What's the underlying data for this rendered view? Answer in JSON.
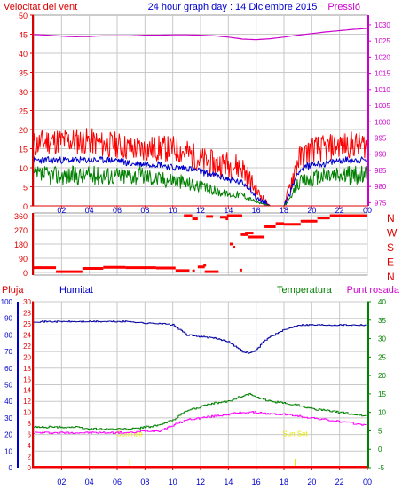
{
  "header": {
    "left_title": "Velocitat del vent",
    "center_title": "24 hour graph day : 14 Diciembre 2015",
    "right_title": "Pressió"
  },
  "lower_header": {
    "pluja": "Pluja",
    "humitat": "Humitat",
    "temperatura": "Temperatura",
    "punt_rosada": "Punt rosada"
  },
  "colors": {
    "gust": "#ff0000",
    "wind_avg": "#0000cc",
    "wind_low": "#008000",
    "pressure": "#cc00cc",
    "direction": "#ff0000",
    "humidity": "#0000a0",
    "temperature": "#008000",
    "dewpoint": "#ff00ff",
    "rain": "#ff0000",
    "sun": "#e8e800",
    "axis_red": "#dd0000",
    "axis_magenta": "#cc00cc",
    "axis_blue": "#0000cc",
    "axis_green": "#008000",
    "grid": "#c8c8c8"
  },
  "chart_data": [
    {
      "type": "line",
      "name": "wind",
      "x_ticks": [
        "02",
        "04",
        "06",
        "08",
        "10",
        "12",
        "14",
        "16",
        "18",
        "20",
        "22",
        "00"
      ],
      "y_left_ticks": [
        "0",
        "5",
        "10",
        "15",
        "20",
        "25",
        "30",
        "35",
        "40",
        "45",
        "50"
      ],
      "y_left_range": [
        0,
        50
      ],
      "y_right_ticks": [
        "975",
        "980",
        "985",
        "990",
        "995",
        "1000",
        "1005",
        "1010",
        "1015",
        "1020",
        "1025",
        "1030"
      ],
      "y_right_range": [
        974,
        1033
      ],
      "grid": true,
      "series": [
        {
          "role": "gust",
          "x": [
            0,
            1,
            2,
            3,
            4,
            5,
            6,
            7,
            8,
            9,
            10,
            11,
            12,
            13,
            14,
            15,
            15.5,
            16,
            17,
            18,
            18.5,
            19,
            20,
            21,
            22,
            23,
            24
          ],
          "y": [
            16,
            17,
            17,
            17,
            17,
            16,
            16,
            15,
            15,
            15,
            15,
            14,
            12,
            11,
            11,
            10,
            7,
            4,
            0,
            0,
            6,
            12,
            15,
            15,
            16,
            16,
            16
          ]
        },
        {
          "role": "average",
          "x": [
            0,
            1,
            2,
            3,
            4,
            5,
            6,
            7,
            8,
            9,
            10,
            11,
            12,
            13,
            14,
            15,
            15.5,
            16,
            17,
            18,
            18.5,
            19,
            20,
            21,
            22,
            23,
            24
          ],
          "y": [
            12,
            12,
            12,
            12,
            12,
            12,
            12,
            11,
            11,
            11,
            10,
            10,
            9,
            8,
            7,
            6,
            5,
            2,
            0,
            0,
            4,
            9,
            11,
            11,
            12,
            12,
            12
          ]
        },
        {
          "role": "lull",
          "x": [
            0,
            1,
            2,
            3,
            4,
            5,
            6,
            7,
            8,
            9,
            10,
            11,
            12,
            13,
            14,
            15,
            15.5,
            16,
            17,
            18,
            18.5,
            19,
            20,
            21,
            22,
            23,
            24
          ],
          "y": [
            8,
            8,
            8,
            8,
            8,
            8,
            8,
            8,
            8,
            7,
            7,
            6,
            5,
            4,
            3,
            3,
            2,
            1,
            0,
            0,
            2,
            6,
            7,
            8,
            8,
            8,
            8
          ]
        },
        {
          "role": "pressure",
          "axis": "right",
          "x": [
            0,
            1,
            2,
            3,
            4,
            5,
            6,
            7,
            8,
            9,
            10,
            11,
            12,
            13,
            14,
            15,
            16,
            17,
            18,
            19,
            20,
            21,
            22,
            23,
            24
          ],
          "y": [
            1027,
            1026.8,
            1026.5,
            1026.3,
            1026.4,
            1026.6,
            1026.6,
            1026.6,
            1026.8,
            1026.8,
            1026.9,
            1026.9,
            1026.8,
            1026.6,
            1026.2,
            1025.6,
            1025.4,
            1025.7,
            1026.2,
            1026.8,
            1027.3,
            1027.8,
            1028.2,
            1028.6,
            1028.9
          ]
        }
      ]
    },
    {
      "type": "scatter",
      "name": "wind_direction",
      "y_left_ticks": [
        "0",
        "90",
        "180",
        "270",
        "360"
      ],
      "y_left_range": [
        0,
        360
      ],
      "y_right_ticks": [
        "N",
        "W",
        "S",
        "E",
        "N"
      ],
      "segments": [
        {
          "x0": 0,
          "x1": 1.6,
          "y": 30
        },
        {
          "x0": 1.6,
          "x1": 3.5,
          "y": 5
        },
        {
          "x0": 3.5,
          "x1": 5,
          "y": 25
        },
        {
          "x0": 5,
          "x1": 6.6,
          "y": 32
        },
        {
          "x0": 6.6,
          "x1": 8.8,
          "y": 30
        },
        {
          "x0": 8.8,
          "x1": 10.2,
          "y": 28
        },
        {
          "x0": 10.2,
          "x1": 11.2,
          "y": 12
        },
        {
          "x0": 11.8,
          "x1": 12.3,
          "y": 35
        },
        {
          "x0": 12.3,
          "x1": 13.3,
          "y": 5
        },
        {
          "x0": 10.8,
          "x1": 11.4,
          "y": 365
        },
        {
          "x0": 11.4,
          "x1": 11.8,
          "y": 340
        },
        {
          "x0": 12.4,
          "x1": 12.9,
          "y": 355
        },
        {
          "x0": 13.4,
          "x1": 13.9,
          "y": 350
        },
        {
          "x0": 13.9,
          "x1": 15,
          "y": 365
        },
        {
          "x0": 14.9,
          "x1": 15.4,
          "y": 240
        },
        {
          "x0": 15.4,
          "x1": 16.6,
          "y": 225
        },
        {
          "x0": 15.2,
          "x1": 15.8,
          "y": 250
        },
        {
          "x0": 16.6,
          "x1": 17.4,
          "y": 290
        },
        {
          "x0": 17.4,
          "x1": 18,
          "y": 310
        },
        {
          "x0": 18,
          "x1": 19.2,
          "y": 305
        },
        {
          "x0": 19.2,
          "x1": 20.4,
          "y": 325
        },
        {
          "x0": 20.4,
          "x1": 21.3,
          "y": 345
        },
        {
          "x0": 21.3,
          "x1": 24,
          "y": 365
        }
      ],
      "points": [
        {
          "x": 11.5,
          "y": 10
        },
        {
          "x": 12.3,
          "y": 45
        },
        {
          "x": 14.2,
          "y": 180
        },
        {
          "x": 14.4,
          "y": 160
        },
        {
          "x": 14.9,
          "y": 15
        },
        {
          "x": 13.9,
          "y": 340
        }
      ]
    },
    {
      "type": "line",
      "name": "humidity_temperature",
      "x_ticks": [
        "02",
        "04",
        "06",
        "08",
        "10",
        "12",
        "14",
        "16",
        "18",
        "20",
        "22",
        "00"
      ],
      "y_left_outer_ticks": [
        "0",
        "10",
        "20",
        "30",
        "40",
        "50",
        "60",
        "70",
        "80",
        "90",
        "100"
      ],
      "y_left_outer_range": [
        0,
        100
      ],
      "y_left_inner_ticks": [
        "0",
        "2",
        "4",
        "6",
        "8",
        "10",
        "12",
        "14",
        "16",
        "18",
        "20",
        "22",
        "24",
        "26",
        "28",
        "30"
      ],
      "y_left_inner_range": [
        0,
        30
      ],
      "y_right_ticks": [
        "-5",
        "0",
        "5",
        "10",
        "15",
        "20",
        "25",
        "30",
        "35",
        "40"
      ],
      "y_right_range": [
        -5,
        40
      ],
      "annotations": [
        {
          "label": "Sun rise",
          "x": 6.9
        },
        {
          "label": "Sun Set",
          "x": 18.8
        }
      ],
      "series": [
        {
          "role": "humidity",
          "axis": "left_outer",
          "x": [
            0,
            1,
            2,
            3,
            4,
            5,
            6,
            7,
            8,
            9,
            10,
            10.5,
            11,
            12,
            13,
            14,
            14.5,
            15,
            15.5,
            16,
            16.5,
            17,
            18,
            19,
            20,
            21,
            22,
            23,
            24
          ],
          "y": [
            88,
            88,
            88,
            88,
            88,
            88,
            88,
            88,
            87,
            87,
            86,
            83,
            80,
            79,
            78,
            76,
            73,
            70,
            69,
            71,
            76,
            79,
            83,
            86,
            86,
            86,
            86,
            86,
            86
          ]
        },
        {
          "role": "temperature",
          "axis": "right",
          "x": [
            0,
            1,
            2,
            3,
            4,
            5,
            6,
            7,
            8,
            9,
            10,
            11,
            12,
            13,
            14,
            15,
            15.5,
            16,
            17,
            18,
            19,
            20,
            21,
            22,
            23,
            24
          ],
          "y": [
            6,
            6,
            6,
            6,
            5.5,
            5.5,
            5.5,
            5.5,
            6,
            6.5,
            8,
            10.5,
            11.5,
            12.5,
            13,
            14.5,
            15,
            14,
            13,
            12.5,
            12,
            11,
            10.5,
            10,
            9.5,
            9
          ]
        },
        {
          "role": "dewpoint",
          "axis": "right",
          "x": [
            0,
            1,
            2,
            3,
            4,
            5,
            6,
            7,
            8,
            9,
            10,
            11,
            12,
            13,
            14,
            15,
            15.5,
            16,
            17,
            18,
            19,
            20,
            21,
            22,
            23,
            24
          ],
          "y": [
            4.5,
            4.5,
            4.5,
            4.5,
            4.5,
            4.5,
            4.5,
            4.5,
            5,
            5,
            6.5,
            8,
            8.5,
            9,
            9.5,
            10,
            10,
            10,
            9.5,
            9.5,
            9,
            8.5,
            8,
            7.5,
            7,
            6.5
          ]
        },
        {
          "role": "rain",
          "axis": "left_outer",
          "x": [
            0,
            24
          ],
          "y": [
            0,
            0
          ]
        }
      ]
    }
  ]
}
